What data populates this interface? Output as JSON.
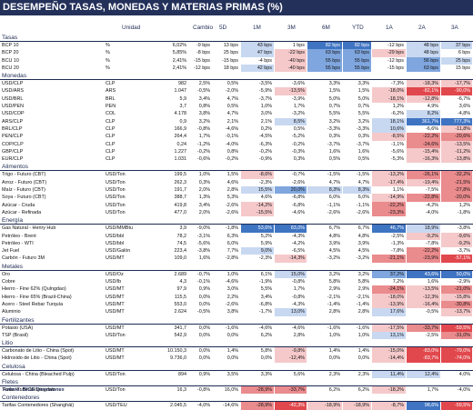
{
  "title": "DESEMPEÑO TASAS, MONEDAS Y MATERIAS PRIMAS (%)",
  "headers": {
    "unidad": "Unidad",
    "cambio": "Cambio",
    "d5": "5D",
    "m1": "1M",
    "m3": "3M",
    "m6": "6M",
    "ytd": "YTD",
    "y1": "1A",
    "y2": "2A",
    "y3": "3A"
  },
  "colors": {
    "header": "#23305a",
    "blue_dark": "#3f74c2",
    "blue_mid": "#7fa6de",
    "blue_light": "#c8d8f1",
    "red_dark": "#e1484d",
    "red_mid": "#ea8b8d",
    "red_light": "#f5c9ca"
  },
  "sections": [
    {
      "name": "Tasas",
      "rows": [
        {
          "name": "BCP 10",
          "unit": "%",
          "val": "6,02%",
          "d1": "-9 bps",
          "d5": "13 bps",
          "m1": "43 bps",
          "m3": "1 bps",
          "m6": "82 bps",
          "ytd": "82 bps",
          "y1": "-12 bps",
          "y2": "48 bps",
          "y3": "37 bps"
        },
        {
          "name": "BCP 20",
          "unit": "%",
          "val": "5,85%",
          "d1": "-8 bps",
          "d5": "25 bps",
          "m1": "47 bps",
          "m3": "-22 bps",
          "m6": "63 bps",
          "ytd": "63 bps",
          "y1": "-29 bps",
          "y2": "48 bps",
          "y3": "6 bps"
        },
        {
          "name": "BCU 10",
          "unit": "%",
          "val": "2,41%",
          "d1": "-15 bps",
          "d5": "-15 bps",
          "m1": "-4 bps",
          "m3": "-40 bps",
          "m6": "55 bps",
          "ytd": "55 bps",
          "y1": "-12 bps",
          "y2": "56 bps",
          "y3": "25 bps"
        },
        {
          "name": "BCU 20",
          "unit": "%",
          "val": "2,41%",
          "d1": "-12 bps",
          "d5": "18 bps",
          "m1": "42 bps",
          "m3": "-40 bps",
          "m6": "55 bps",
          "ytd": "55 bps",
          "y1": "-15 bps",
          "y2": "63 bps",
          "y3": "15 bps"
        }
      ]
    },
    {
      "name": "Monedas",
      "rows": [
        {
          "name": "USD/CLP",
          "unit": "CLP",
          "val": "982",
          "d1": "2,5%",
          "d5": "0,5%",
          "m1": "-3,5%",
          "m3": "-3,6%",
          "m6": "3,3%",
          "ytd": "3,3%",
          "y1": "-7,3%",
          "y2": "-18,3%",
          "y3": "-17,7%"
        },
        {
          "name": "USD/ARS",
          "unit": "ARS",
          "val": "1.047",
          "d1": "-0,5%",
          "d5": "-2,0%",
          "m1": "-5,9%",
          "m3": "-13,5%",
          "m6": "1,5%",
          "ytd": "1,5%",
          "y1": "-18,0%",
          "y2": "-82,1%",
          "y3": "-90,0%"
        },
        {
          "name": "USD/BRL",
          "unit": "BRL",
          "val": "5,9",
          "d1": "3,4%",
          "d5": "4,7%",
          "m1": "-3,7%",
          "m3": "-3,9%",
          "m6": "5,0%",
          "ytd": "5,0%",
          "y1": "-18,1%",
          "y2": "-12,8%",
          "y3": "-6,7%"
        },
        {
          "name": "USD/PEN",
          "unit": "PEN",
          "val": "3,7",
          "d1": "0,8%",
          "d5": "0,5%",
          "m1": "1,0%",
          "m3": "1,7%",
          "m6": "0,7%",
          "ytd": "0,7%",
          "y1": "1,2%",
          "y2": "4,9%",
          "y3": "3,6%"
        },
        {
          "name": "USD/COP",
          "unit": "COL",
          "val": "4.178",
          "d1": "3,8%",
          "d5": "4,7%",
          "m1": "3,0%",
          "m3": "-3,2%",
          "m6": "5,5%",
          "ytd": "5,5%",
          "y1": "-6,2%",
          "y2": "8,2%",
          "y3": "-4,8%"
        },
        {
          "name": "ARS/CLP",
          "unit": "CLP",
          "val": "0,9",
          "d1": "3,2%",
          "d5": "2,1%",
          "m1": "2,1%",
          "m3": "8,5%",
          "m6": "3,2%",
          "ytd": "3,2%",
          "y1": "18,1%",
          "y2": "361,7%",
          "y3": "777,3%"
        },
        {
          "name": "BRL/CLP",
          "unit": "CLP",
          "val": "166,9",
          "d1": "-0,8%",
          "d5": "-4,6%",
          "m1": "0,2%",
          "m3": "0,5%",
          "m6": "-3,3%",
          "ytd": "-3,3%",
          "y1": "10,6%",
          "y2": "-6,6%",
          "y3": "-11,8%"
        },
        {
          "name": "PEN/CLP",
          "unit": "CLP",
          "val": "264,4",
          "d1": "1,7%",
          "d5": "-0,1%",
          "m1": "-4,5%",
          "m3": "-5,2%",
          "m6": "0,3%",
          "ytd": "0,3%",
          "y1": "-8,5%",
          "y2": "-22,2%",
          "y3": "-20,6%"
        },
        {
          "name": "COP/CLP",
          "unit": "CLP",
          "val": "0,24",
          "d1": "-1,2%",
          "d5": "-4,0%",
          "m1": "-6,3%",
          "m3": "-0,2%",
          "m6": "-3,7%",
          "ytd": "-3,7%",
          "y1": "-1,1%",
          "y2": "-24,6%",
          "y3": "-13,5%"
        },
        {
          "name": "GBP/CLP",
          "unit": "CLP",
          "val": "1.227",
          "d1": "-0,2%",
          "d5": "0,8%",
          "m1": "-0,2%",
          "m3": "-0,3%",
          "m6": "1,6%",
          "ytd": "1,6%",
          "y1": "-5,6%",
          "y2": "-15,4%",
          "y3": "-11,2%"
        },
        {
          "name": "EUR/CLP",
          "unit": "CLP",
          "val": "1.031",
          "d1": "-0,6%",
          "d5": "-0,2%",
          "m1": "-0,9%",
          "m3": "0,3%",
          "m6": "0,5%",
          "ytd": "0,5%",
          "y1": "-5,3%",
          "y2": "-16,3%",
          "y3": "-13,8%"
        }
      ]
    },
    {
      "name": "Alimentos",
      "rows": [
        {
          "name": "Trigo - Futuro (CBT)",
          "unit": "USD/Ton",
          "val": "199,5",
          "d1": "1,0%",
          "d5": "1,5%",
          "m1": "-8,6%",
          "m3": "-0,7%",
          "m6": "-1,5%",
          "ytd": "-1,5%",
          "y1": "-13,2%",
          "y2": "-26,1%",
          "y3": "-32,2%"
        },
        {
          "name": "Arroz - Futuro (CBT)",
          "unit": "USD/Ton",
          "val": "262,3",
          "d1": "0,3%",
          "d5": "4,6%",
          "m1": "-2,3%",
          "m3": "-2,6%",
          "m6": "4,7%",
          "ytd": "4,7%",
          "y1": "-17,4%",
          "y2": "-19,4%",
          "y3": "-21,5%"
        },
        {
          "name": "Maíz - Futuro (CBT)",
          "unit": "USD/Ton",
          "val": "191,7",
          "d1": "2,0%",
          "d5": "2,8%",
          "m1": "15,5%",
          "m3": "20,0%",
          "m6": "8,3%",
          "ytd": "8,3%",
          "y1": "1,1%",
          "y2": "-7,5%",
          "y3": "-27,8%"
        },
        {
          "name": "Soya - Futuro (CBT)",
          "unit": "USD/Ton",
          "val": "388,7",
          "d1": "1,3%",
          "d5": "5,3%",
          "m1": "4,6%",
          "m3": "-6,8%",
          "m6": "6,0%",
          "ytd": "6,0%",
          "y1": "-14,9%",
          "y2": "-22,8%",
          "y3": "-20,0%"
        },
        {
          "name": "Azúcar - Cruda",
          "unit": "USD/Ton",
          "val": "419,8",
          "d1": "3,4%",
          "d5": "-2,6%",
          "m1": "-14,2%",
          "m3": "-6,8%",
          "m6": "-1,1%",
          "ytd": "-1,1%",
          "y1": "-22,2%",
          "y2": "-4,2%",
          "y3": "1,2%"
        },
        {
          "name": "Azúcar - Refinada",
          "unit": "USD/Ton",
          "val": "477,0",
          "d1": "2,0%",
          "d5": "-2,6%",
          "m1": "-15,5%",
          "m3": "-4,6%",
          "m6": "-2,6%",
          "ytd": "-2,6%",
          "y1": "-23,3%",
          "y2": "-4,0%",
          "y3": "-1,8%"
        }
      ]
    },
    {
      "name": "Energía",
      "rows": [
        {
          "name": "Gas Natural - Henry Hub",
          "unit": "USD/MMBtu",
          "val": "3,9",
          "d1": "-9,0%",
          "d5": "-1,8%",
          "m1": "53,6%",
          "m3": "83,0%",
          "m6": "6,7%",
          "ytd": "6,7%",
          "y1": "46,7%",
          "y2": "18,9%",
          "y3": "-3,8%"
        },
        {
          "name": "Petróleo - Brent",
          "unit": "USD/bbl",
          "val": "78,2",
          "d1": "-3,1%",
          "d5": "6,3%",
          "m1": "5,2%",
          "m3": "-4,3%",
          "m6": "4,8%",
          "ytd": "4,8%",
          "y1": "-2,5%",
          "y2": "-9,2%",
          "y3": "-9,6%"
        },
        {
          "name": "Petróleo - WTI",
          "unit": "USD/bbl",
          "val": "74,5",
          "d1": "-5,6%",
          "d5": "6,0%",
          "m1": "5,9%",
          "m3": "-4,2%",
          "m6": "3,9%",
          "ytd": "3,9%",
          "y1": "-1,3%",
          "y2": "-7,8%",
          "y3": "-9,2%"
        },
        {
          "name": "Jet Fuel",
          "unit": "USD/Galón",
          "val": "223,4",
          "d1": "-3,8%",
          "d5": "7,7%",
          "m1": "9,0%",
          "m3": "-6,5%",
          "m6": "4,5%",
          "ytd": "4,5%",
          "y1": "-7,8%",
          "y2": "-22,2%",
          "y3": "-3,7%"
        },
        {
          "name": "Carbón - Futuro 3M",
          "unit": "USD/MT",
          "val": "109,0",
          "d1": "1,6%",
          "d5": "-2,8%",
          "m1": "-2,3%",
          "m3": "-14,3%",
          "m6": "-3,2%",
          "ytd": "-3,2%",
          "y1": "-21,1%",
          "y2": "-23,9%",
          "y3": "-57,1%"
        }
      ]
    },
    {
      "name": "Metales",
      "rows": [
        {
          "name": "Oro",
          "unit": "USD/Oz",
          "val": "2.689",
          "d1": "-0,7%",
          "d5": "1,0%",
          "m1": "6,1%",
          "m3": "15,0%",
          "m6": "3,2%",
          "ytd": "3,2%",
          "y1": "37,2%",
          "y2": "43,6%",
          "y3": "50,0%"
        },
        {
          "name": "Cobre",
          "unit": "USD/lb",
          "val": "4,3",
          "d1": "-0,1%",
          "d5": "-4,6%",
          "m1": "-1,9%",
          "m3": "-0,8%",
          "m6": "5,8%",
          "ytd": "5,8%",
          "y1": "7,2%",
          "y2": "1,6%",
          "y3": "-2,9%"
        },
        {
          "name": "Hierro - Fine 62% (Qulngdao)",
          "unit": "USD/MT",
          "val": "97,9",
          "d1": "0,9%",
          "d5": "3,0%",
          "m1": "5,5%",
          "m3": "1,7%",
          "m6": "2,9%",
          "ytd": "2,9%",
          "y1": "-24,1%",
          "y2": "-13,5%",
          "y3": "-21,0%"
        },
        {
          "name": "Hierro - Fine 65% (Brazil-China)",
          "unit": "USD/MT",
          "val": "115,5",
          "d1": "0,0%",
          "d5": "2,2%",
          "m1": "3,4%",
          "m3": "-0,8%",
          "m6": "-2,1%",
          "ytd": "-2,1%",
          "y1": "-18,0%",
          "y2": "-12,3%",
          "y3": "-15,8%"
        },
        {
          "name": "Acero - Steel Rebar Turquía",
          "unit": "USD/MT",
          "val": "553,0",
          "d1": "0,0%",
          "d5": "-2,6%",
          "m1": "-6,8%",
          "m3": "-4,3%",
          "m6": "-1,4%",
          "ytd": "-1,4%",
          "y1": "-13,9%",
          "y2": "-16,4%",
          "y3": "-30,8%"
        },
        {
          "name": "Aluminio",
          "unit": "USD/MT",
          "val": "2.624",
          "d1": "-0,5%",
          "d5": "3,8%",
          "m1": "-1,7%",
          "m3": "13,0%",
          "m6": "2,8%",
          "ytd": "2,8%",
          "y1": "17,6%",
          "y2": "-0,5%",
          "y3": "-13,7%"
        }
      ]
    },
    {
      "name": "Fertilizantes",
      "rows": [
        {
          "name": "Potasio (USA)",
          "unit": "USD/MT",
          "val": "341,7",
          "d1": "0,0%",
          "d5": "-1,6%",
          "m1": "-4,6%",
          "m3": "-4,6%",
          "m6": "-1,6%",
          "ytd": "-1,6%",
          "y1": "-17,5%",
          "y2": "-33,7%",
          "y3": "-59,5%"
        },
        {
          "name": "TSP (Brasil)",
          "unit": "USD/Ton",
          "val": "542,9",
          "d1": "0,0%",
          "d5": "0,0%",
          "m1": "6,2%",
          "m3": "2,8%",
          "m6": "1,0%",
          "ytd": "1,0%",
          "y1": "13,1%",
          "y2": "-2,5%",
          "y3": "-31,0%"
        }
      ]
    },
    {
      "name": "Litio",
      "rows": [
        {
          "name": "Carbonato de Litio - China (Spot)",
          "unit": "USD/MT",
          "val": "10.150,3",
          "d1": "0,0%",
          "d5": "1,4%",
          "m1": "5,8%",
          "m3": "-9,8%",
          "m6": "1,4%",
          "ytd": "1,4%",
          "y1": "-15,0%",
          "y2": "-83,0%",
          "y3": "-79,0%"
        },
        {
          "name": "Hidroxido de Litio - China (Spot)",
          "unit": "USD/MT",
          "val": "9.736,0",
          "d1": "0,0%",
          "d5": "0,0%",
          "m1": "0,0%",
          "m3": "-12,4%",
          "m6": "0,0%",
          "ytd": "0,0%",
          "y1": "-14,4%",
          "y2": "-83,7%",
          "y3": "-74,0%"
        }
      ]
    },
    {
      "name": "Celulosa",
      "rows": [
        {
          "name": "Celulosa - China (Bleached Pulp)",
          "unit": "USD/Ton",
          "val": "894",
          "d1": "0,9%",
          "d5": "3,5%",
          "m1": "3,3%",
          "m3": "5,6%",
          "m6": "2,3%",
          "ytd": "2,3%",
          "y1": "11,4%",
          "y2": "12,4%",
          "y3": "4,0%"
        }
      ]
    },
    {
      "name": "Fletes",
      "rows": [
        {
          "name": "Tarifa -Tuberas/Qingdao",
          "unit": "USD/Ton",
          "val": "16,3",
          "d1": "-0,8%",
          "d5": "16,0%",
          "m1": "-28,9%",
          "m3": "-33,7%",
          "m6": "6,2%",
          "ytd": "6,2%",
          "y1": "-18,2%",
          "y2": "1,7%",
          "y3": "-4,0%"
        }
      ]
    },
    {
      "name": "Contenedores",
      "rows": [
        {
          "name": "Tarifas Contenedores (Shanghái)",
          "unit": "USD/TEU",
          "val": "2.045,5",
          "d1": "-4,0%",
          "d5": "-14,6%",
          "m1": "-28,9%",
          "m3": "-42,3%",
          "m6": "-18,9%",
          "ytd": "-18,9%",
          "y1": "-8,7%",
          "y2": "98,6%",
          "y3": "-59,5%"
        }
      ]
    }
  ],
  "source": "Fuente: BICE Inversiones"
}
